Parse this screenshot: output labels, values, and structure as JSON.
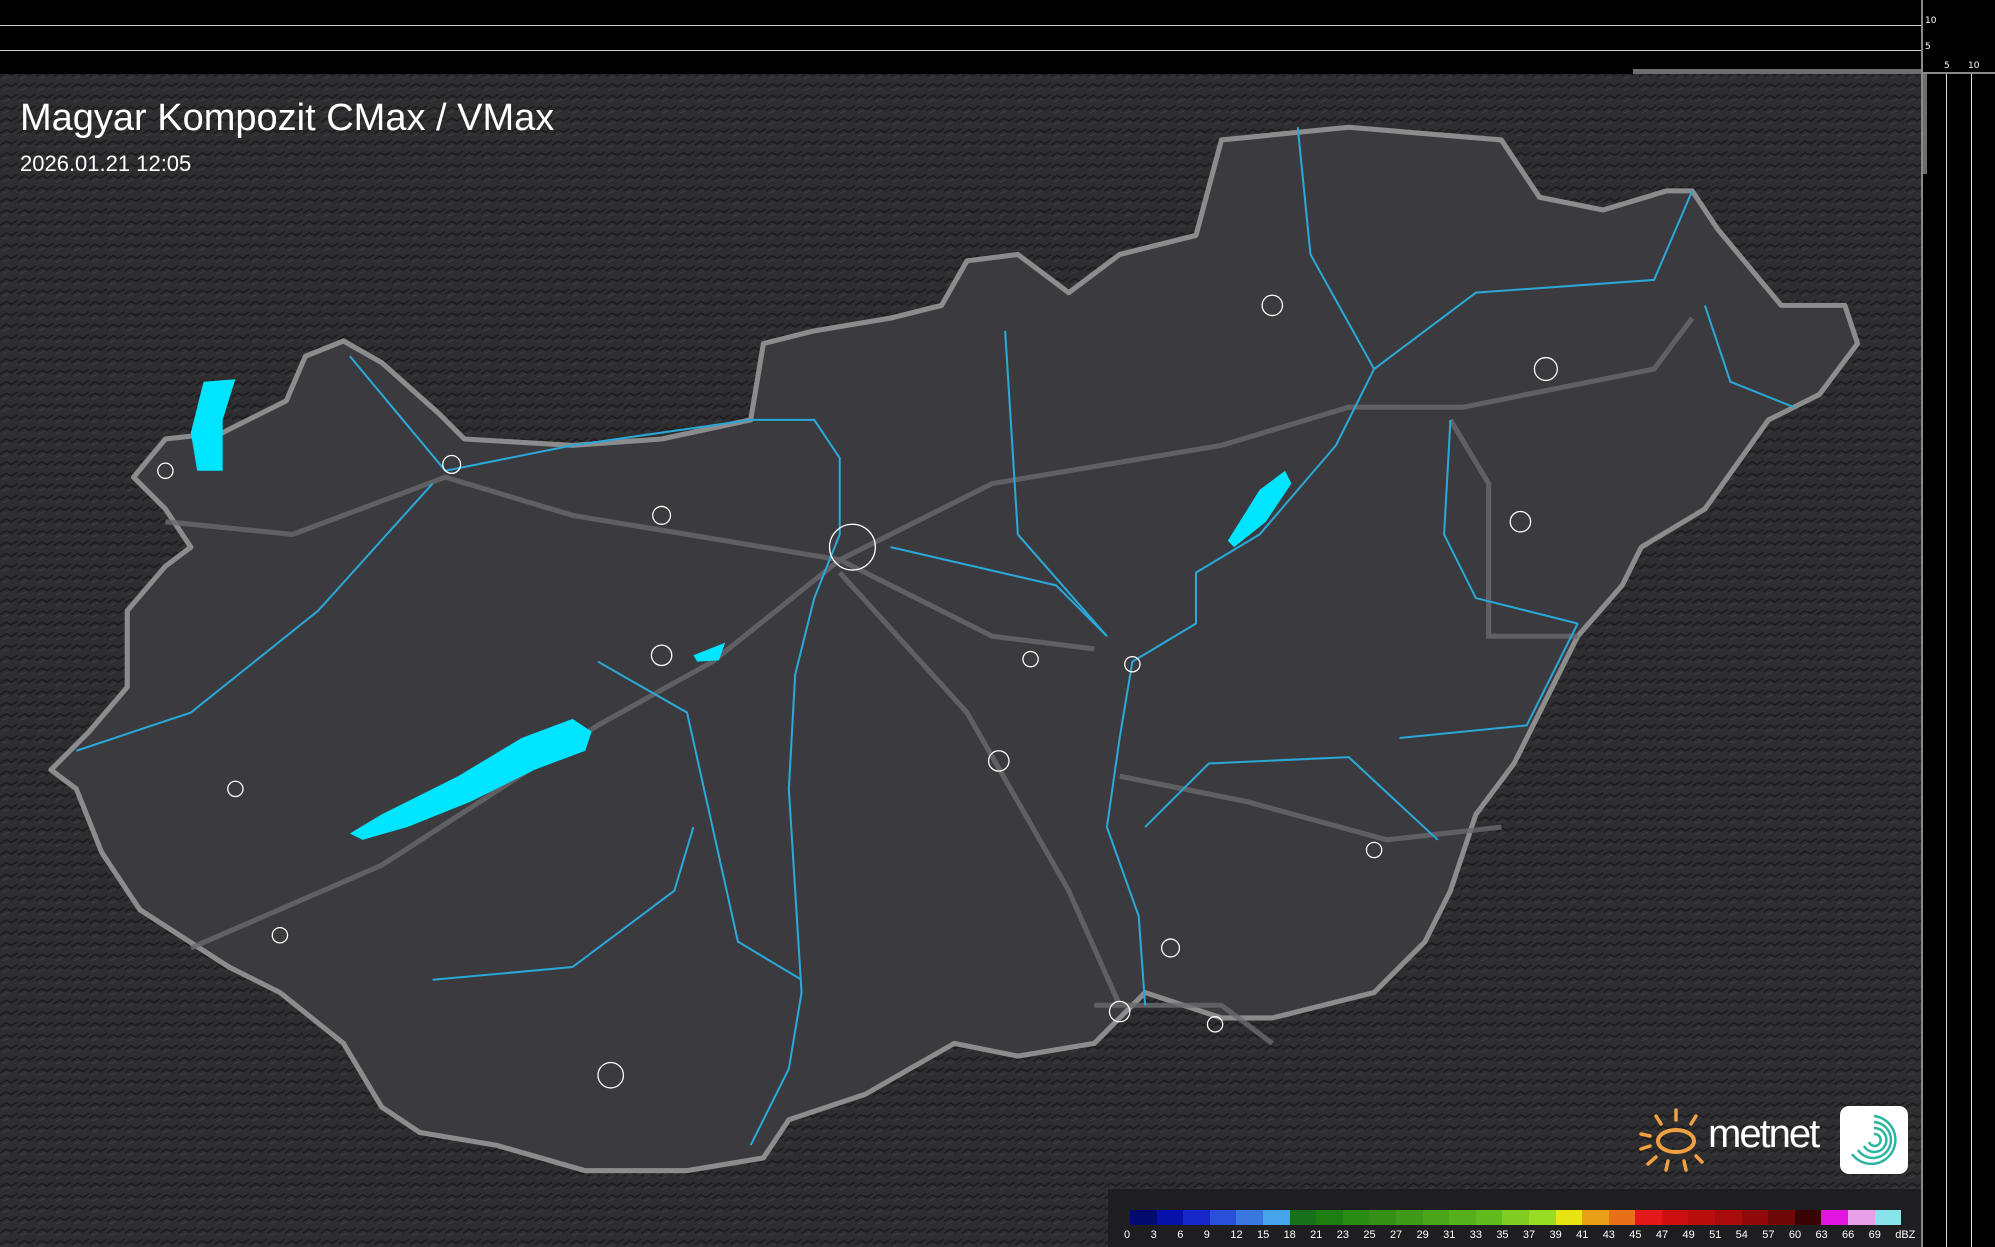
{
  "title": "Magyar Kompozit CMax / VMax",
  "timestamp": "2026.01.21 12:05",
  "scale_top": {
    "labels": [
      "10",
      "5"
    ]
  },
  "scale_right": {
    "labels": [
      "5",
      "10"
    ]
  },
  "legend": {
    "unit": "dBZ",
    "labels": [
      "0",
      "3",
      "6",
      "9",
      "12",
      "15",
      "18",
      "21",
      "23",
      "25",
      "27",
      "29",
      "31",
      "33",
      "35",
      "37",
      "39",
      "41",
      "43",
      "45",
      "47",
      "49",
      "51",
      "54",
      "57",
      "60",
      "63",
      "66",
      "69"
    ],
    "colors": [
      "#050a6e",
      "#0710a8",
      "#1828c8",
      "#2a4fd8",
      "#3a78e0",
      "#48a4ea",
      "#17701a",
      "#1e7e12",
      "#2a8c14",
      "#348f16",
      "#3e9a18",
      "#4aa51a",
      "#56b01c",
      "#62bb1e",
      "#80cc22",
      "#96dd24",
      "#e8e414",
      "#eaa016",
      "#e87018",
      "#e41818",
      "#cc1010",
      "#b80e0e",
      "#a80c0c",
      "#900a0a",
      "#6e0808",
      "#3a0404",
      "#e016e0",
      "#e8a0e8",
      "#88e4ea"
    ]
  },
  "brand": {
    "name": "metnet",
    "sun_color": "#f0a040"
  },
  "colors": {
    "water": "#00e5ff",
    "river": "#2aa8d8",
    "border": "#8a8a8a",
    "background": "#2b2b2e",
    "country": "#3a3a3e"
  },
  "icons": [
    "metnet-sun-logo",
    "app-swirl-icon"
  ]
}
